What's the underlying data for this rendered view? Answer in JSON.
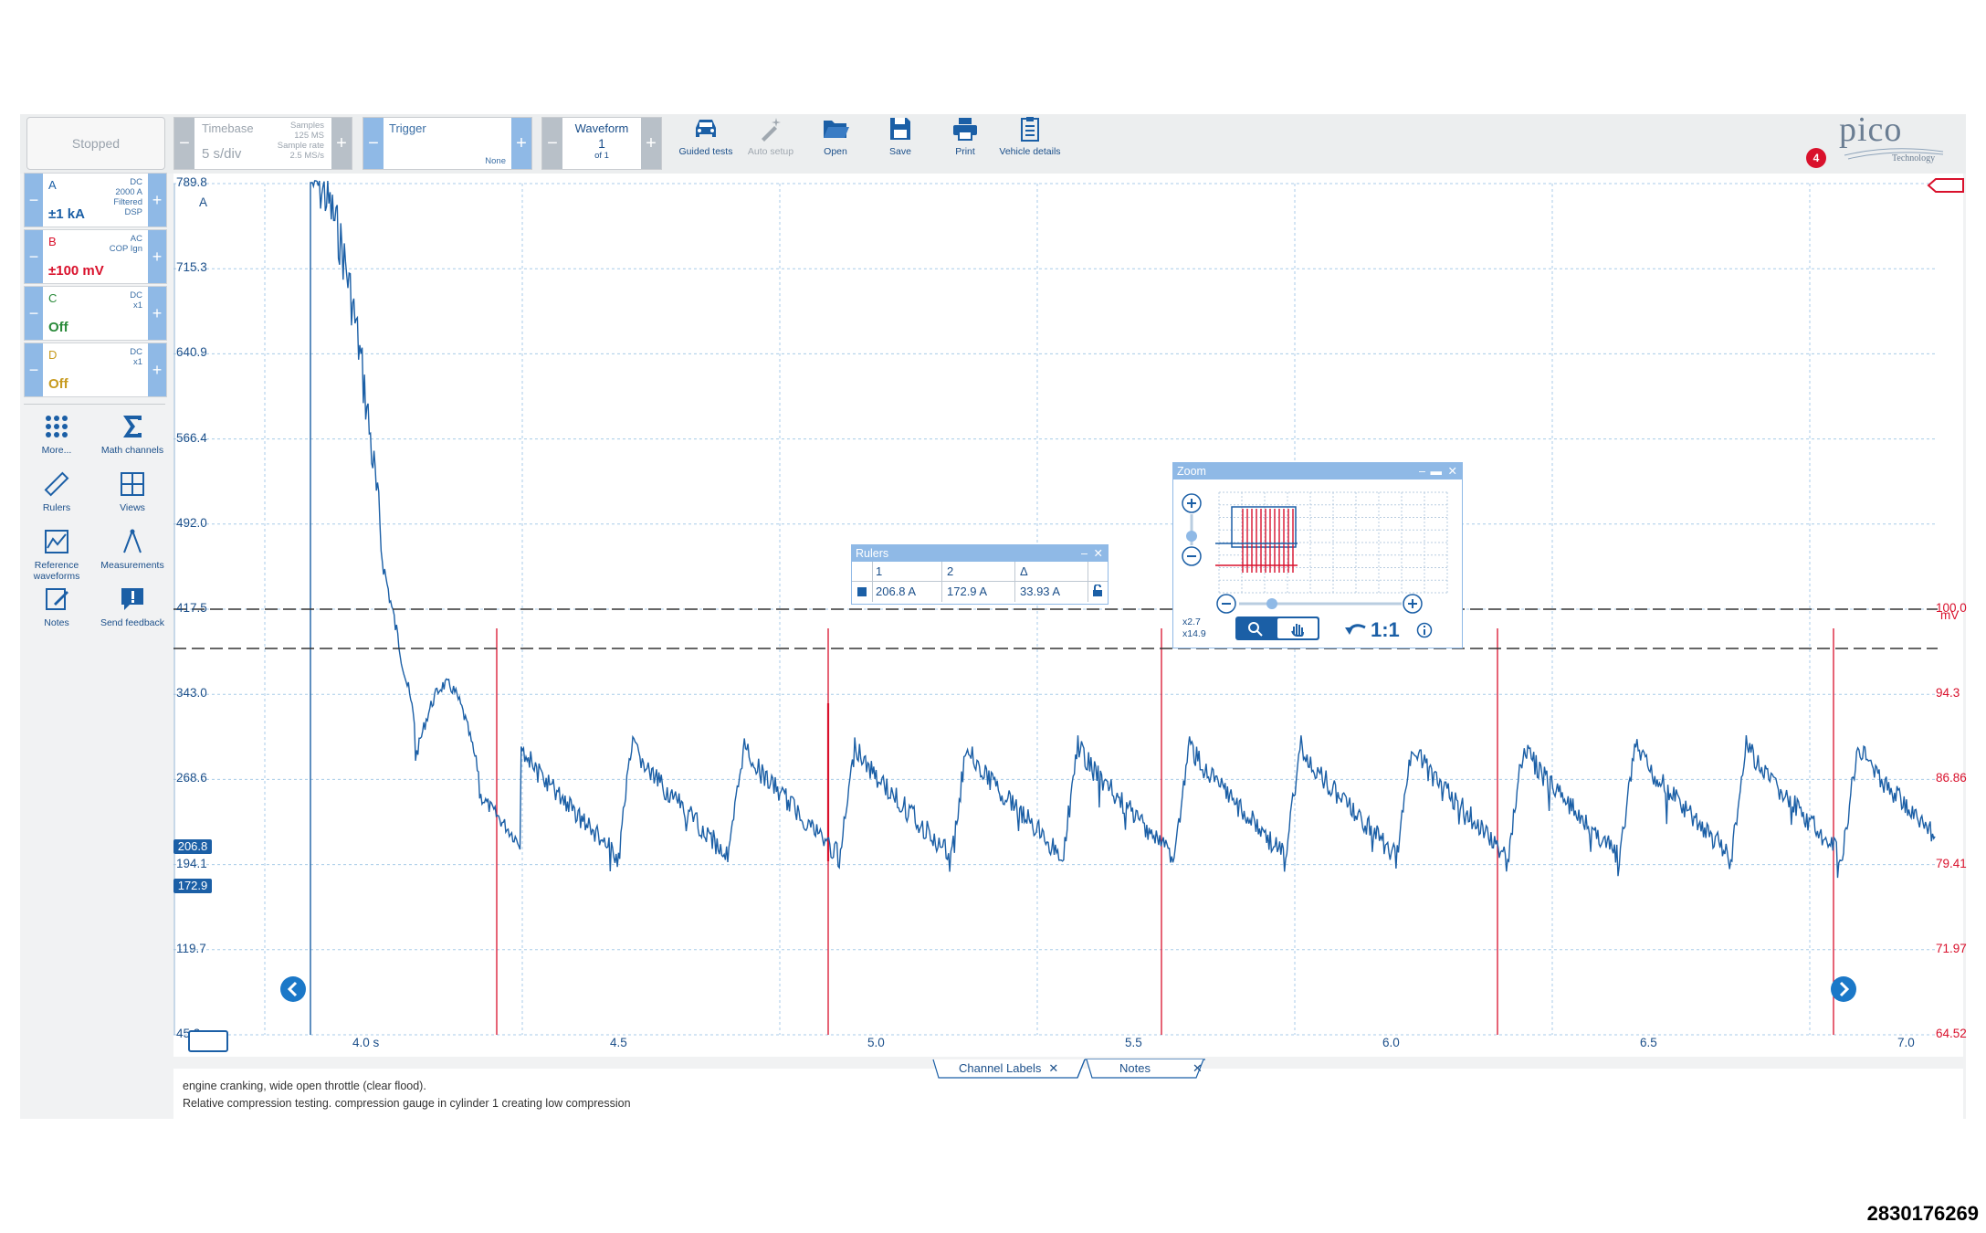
{
  "toolbar": {
    "run_state": "Stopped",
    "timebase": {
      "label": "Timebase",
      "value": "5 s/div",
      "samples_label": "Samples",
      "samples_value": "125 MS",
      "rate_label": "Sample rate",
      "rate_value": "2.5 MS/s"
    },
    "trigger": {
      "label": "Trigger",
      "mode": "None"
    },
    "waveform": {
      "label": "Waveform",
      "current": "1",
      "total": "of 1"
    },
    "tools": [
      {
        "label": "Guided tests",
        "icon": "car-icon"
      },
      {
        "label": "Auto setup",
        "icon": "wand-icon"
      },
      {
        "label": "Open",
        "icon": "folder-icon"
      },
      {
        "label": "Save",
        "icon": "save-icon"
      },
      {
        "label": "Print",
        "icon": "print-icon"
      },
      {
        "label": "Vehicle details",
        "icon": "clipboard-icon"
      }
    ],
    "brand": {
      "logo": "pico",
      "sub": "Technology",
      "badge": "4"
    }
  },
  "channels": [
    {
      "name": "A",
      "range": "±1 kA",
      "meta": [
        "DC",
        "2000 A",
        "Filtered",
        "DSP"
      ],
      "color": "#1b5fa6"
    },
    {
      "name": "B",
      "range": "±100 mV",
      "meta": [
        "AC",
        "COP Ign"
      ],
      "color": "#d9112c"
    },
    {
      "name": "C",
      "range": "Off",
      "meta": [
        "DC",
        "x1"
      ],
      "color": "#2a8a3a"
    },
    {
      "name": "D",
      "range": "Off",
      "meta": [
        "DC",
        "x1"
      ],
      "color": "#c79a1e"
    }
  ],
  "side_tools": [
    {
      "label": "More...",
      "icon": "grid-dots-icon"
    },
    {
      "label": "Math channels",
      "icon": "sigma-icon"
    },
    {
      "label": "Rulers",
      "icon": "ruler-icon"
    },
    {
      "label": "Views",
      "icon": "views-icon"
    },
    {
      "label": "Reference waveforms",
      "icon": "reference-icon"
    },
    {
      "label": "Measurements",
      "icon": "measure-icon"
    },
    {
      "label": "Notes",
      "icon": "notes-icon"
    },
    {
      "label": "Send feedback",
      "icon": "feedback-icon"
    }
  ],
  "axes": {
    "left_unit": "A",
    "left_ticks": [
      "789.8",
      "715.3",
      "640.9",
      "566.4",
      "492.0",
      "417.5",
      "343.0",
      "268.6",
      "194.1",
      "119.7",
      "45.2"
    ],
    "right_unit": "mV",
    "right_ticks": [
      "100.0",
      "94.3",
      "86.86",
      "79.41",
      "71.97",
      "64.52"
    ],
    "x_ticks": [
      "4.0 s",
      "4.5",
      "5.0",
      "5.5",
      "6.0",
      "6.5",
      "7.0"
    ],
    "ruler_1": "206.8",
    "ruler_2": "172.9"
  },
  "rulers_window": {
    "title": "Rulers",
    "headers": [
      "1",
      "2",
      "Δ"
    ],
    "values": [
      "206.8 A",
      "172.9 A",
      "33.93 A"
    ]
  },
  "zoom_window": {
    "title": "Zoom",
    "factor_x": "x2.7",
    "factor_y": "x14.9",
    "reset_label": "1:1"
  },
  "tabs": {
    "channel_labels": "Channel Labels",
    "notes": "Notes"
  },
  "notes": {
    "line1": "engine cranking, wide open throttle (clear flood).",
    "line2": "Relative compression testing. compression gauge in cylinder 1 creating low compression"
  },
  "watermark": "2830176269"
}
